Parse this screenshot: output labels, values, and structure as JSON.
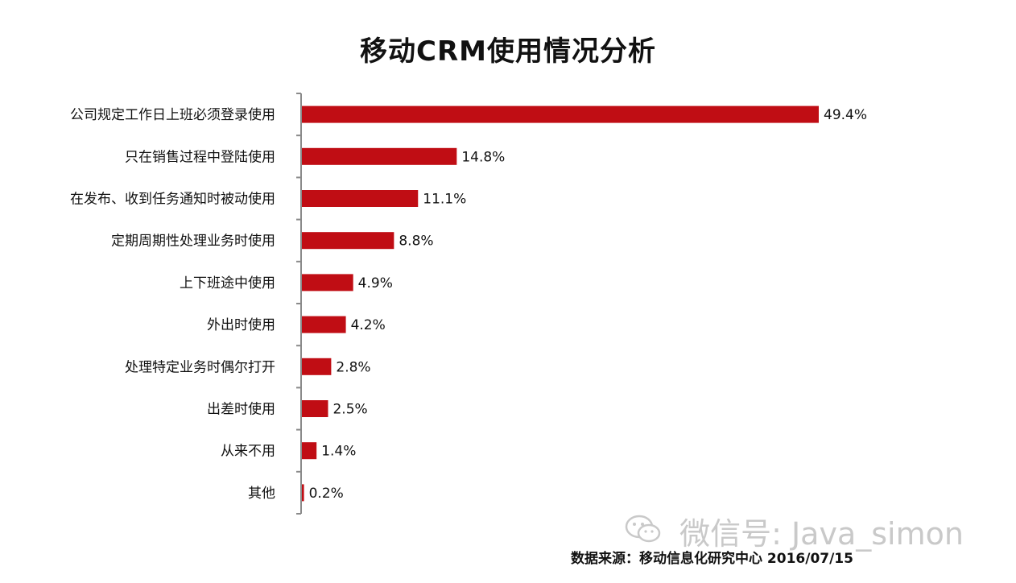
{
  "chart_data": {
    "type": "bar",
    "orientation": "horizontal",
    "title": "移动CRM使用情况分析",
    "categories": [
      "公司规定工作日上班必须登录使用",
      "只在销售过程中登陆使用",
      "在发布、收到任务通知时被动使用",
      "定期周期性处理业务时使用",
      "上下班途中使用",
      "外出时使用",
      "处理特定业务时偶尔打开",
      "出差时使用",
      "从来不用",
      "其他"
    ],
    "values": [
      49.4,
      14.8,
      11.1,
      8.8,
      4.9,
      4.2,
      2.8,
      2.5,
      1.4,
      0.2
    ],
    "value_labels": [
      "49.4%",
      "14.8%",
      "11.1%",
      "8.8%",
      "4.9%",
      "4.2%",
      "2.8%",
      "2.5%",
      "1.4%",
      "0.2%"
    ],
    "unit": "%",
    "xlim": [
      0,
      50
    ],
    "bar_color": "#c00d14",
    "grid": false,
    "legend": "none"
  },
  "source_note": "数据来源：移动信息化研究中心 2016/07/15",
  "watermark": {
    "icon": "wechat-icon",
    "text": "微信号: Java_simon"
  }
}
